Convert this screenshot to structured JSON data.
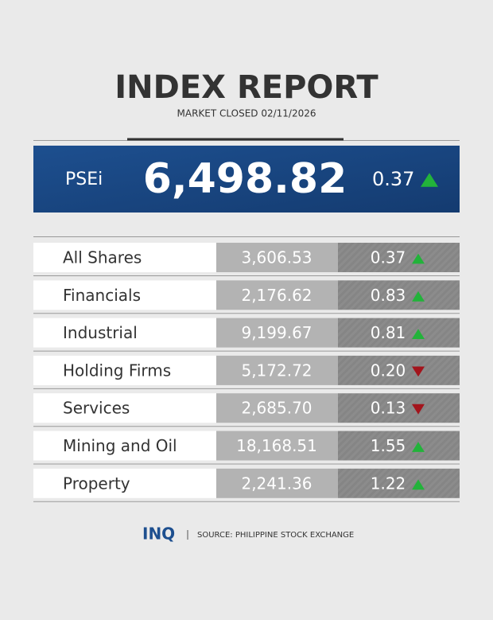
{
  "header": {
    "title": "INDEX REPORT",
    "subtitle": "MARKET CLOSED 02/11/2026"
  },
  "psei": {
    "label": "PSEi",
    "value": "6,498.82",
    "change": "0.37",
    "direction": "up"
  },
  "table": {
    "rows": [
      {
        "name": "All Shares",
        "value": "3,606.53",
        "change": "0.37",
        "direction": "up"
      },
      {
        "name": "Financials",
        "value": "2,176.62",
        "change": "0.83",
        "direction": "up"
      },
      {
        "name": "Industrial",
        "value": "9,199.67",
        "change": "0.81",
        "direction": "up"
      },
      {
        "name": "Holding Firms",
        "value": "5,172.72",
        "change": "0.20",
        "direction": "down"
      },
      {
        "name": "Services",
        "value": "2,685.70",
        "change": "0.13",
        "direction": "down"
      },
      {
        "name": "Mining and Oil",
        "value": "18,168.51",
        "change": "1.55",
        "direction": "up"
      },
      {
        "name": "Property",
        "value": "2,241.36",
        "change": "1.22",
        "direction": "up"
      }
    ]
  },
  "footer": {
    "logo": "INQ",
    "source": "SOURCE: PHILIPPINE STOCK EXCHANGE"
  }
}
